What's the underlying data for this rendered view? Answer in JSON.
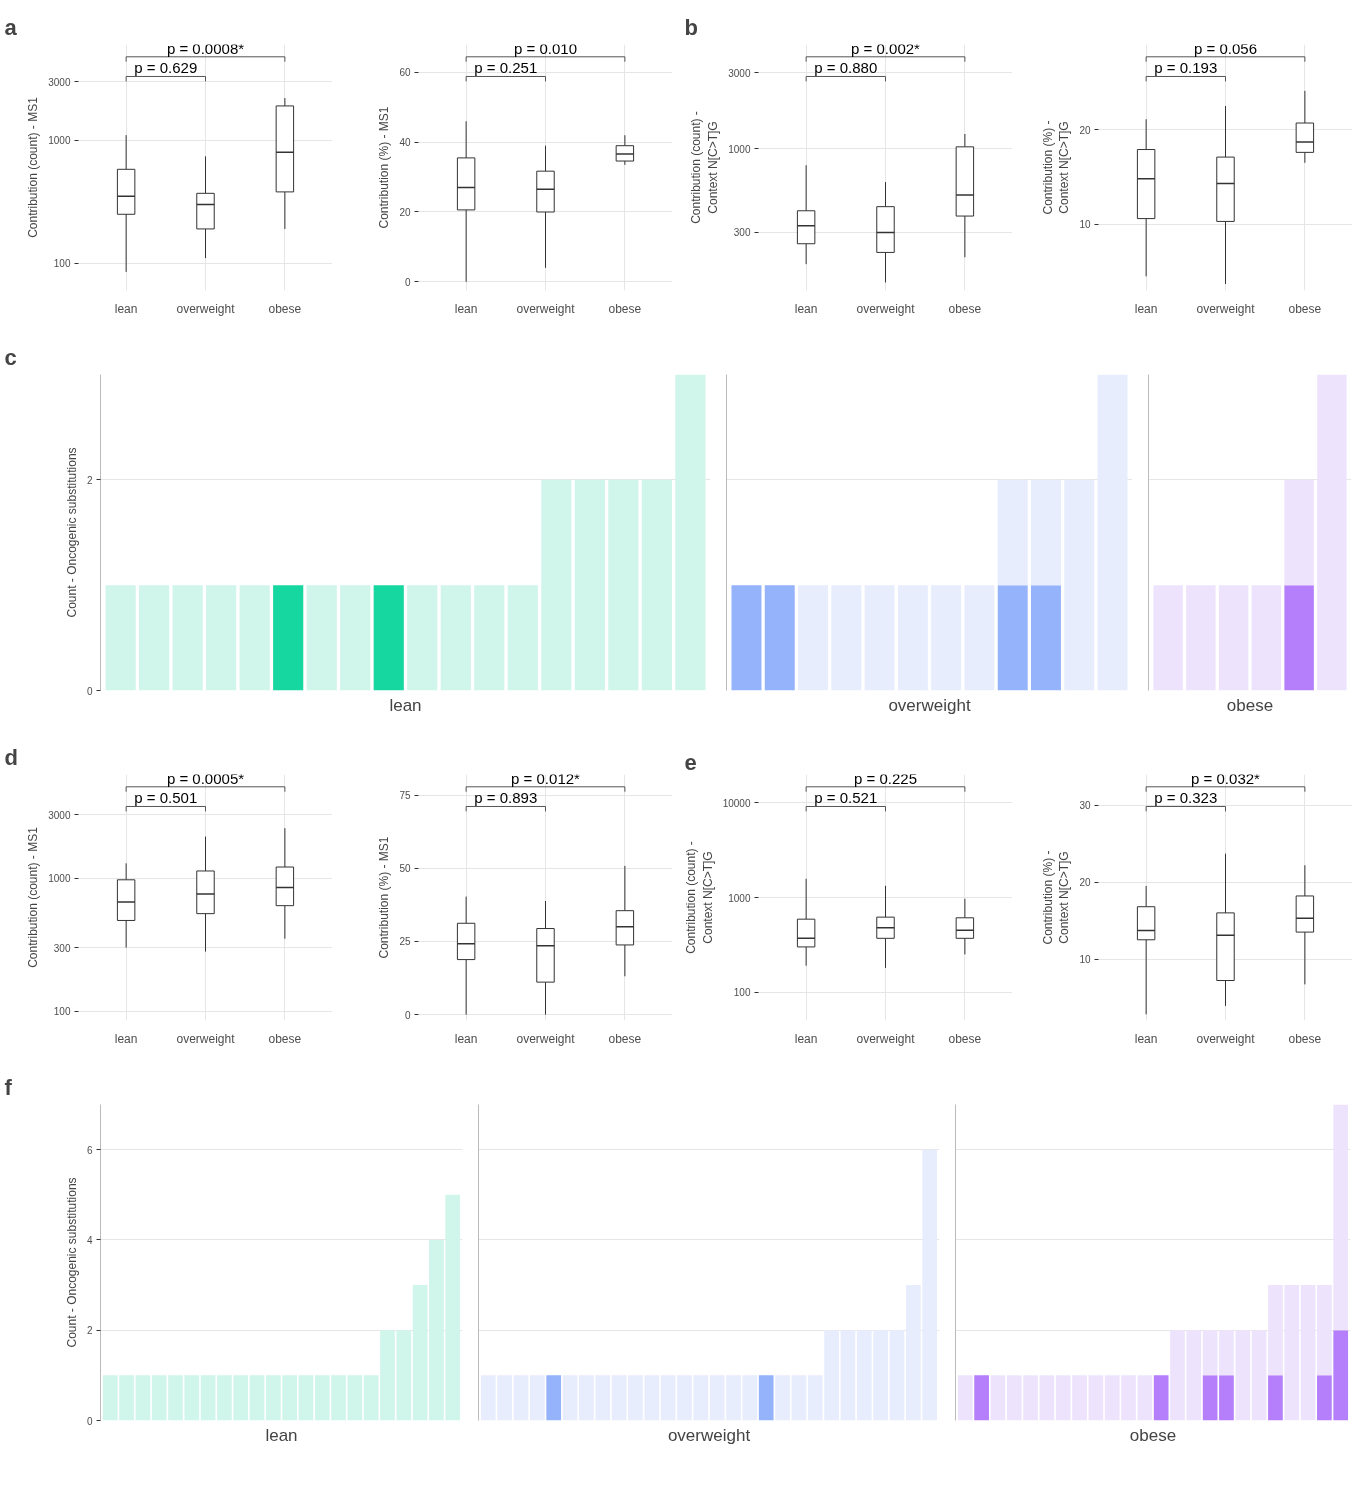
{
  "chart_data": [
    {
      "type": "box",
      "title": "a",
      "ylabel": "Contribution (count) - MS1",
      "categories": [
        "lean",
        "overweight",
        "obese"
      ],
      "log": true,
      "ylim": [
        60,
        6000
      ],
      "yticks": [
        100,
        1000,
        3000
      ],
      "grid": true,
      "annotations": [
        "p = 0.0008*",
        "p = 0.629"
      ],
      "boxes": [
        {
          "low": 85,
          "q1": 250,
          "median": 350,
          "q3": 580,
          "high": 1100
        },
        {
          "low": 110,
          "q1": 190,
          "median": 300,
          "q3": 370,
          "high": 740
        },
        {
          "low": 190,
          "q1": 380,
          "median": 800,
          "q3": 1900,
          "high": 2200
        }
      ]
    },
    {
      "type": "box",
      "ylabel": "Contribution (%) - MS1",
      "categories": [
        "lean",
        "overweight",
        "obese"
      ],
      "ylim": [
        -2.5,
        68
      ],
      "yticks": [
        0,
        20,
        40,
        60
      ],
      "grid": true,
      "annotations": [
        "p = 0.010",
        "p = 0.251"
      ],
      "boxes": [
        {
          "low": 0,
          "q1": 20.6,
          "median": 27,
          "q3": 35.5,
          "high": 46
        },
        {
          "low": 4,
          "q1": 20,
          "median": 26.5,
          "q3": 31.7,
          "high": 39
        },
        {
          "low": 33.5,
          "q1": 34.6,
          "median": 36.6,
          "q3": 39,
          "high": 42
        }
      ]
    },
    {
      "type": "box",
      "title": "b",
      "ylabel": "Contribution (count) -\nContext N[C>T]G",
      "categories": [
        "lean",
        "overweight",
        "obese"
      ],
      "log": true,
      "ylim": [
        130,
        4500
      ],
      "yticks": [
        300,
        1000,
        3000
      ],
      "grid": true,
      "annotations": [
        "p = 0.002*",
        "p = 0.880"
      ],
      "boxes": [
        {
          "low": 190,
          "q1": 255,
          "median": 330,
          "q3": 410,
          "high": 790
        },
        {
          "low": 146,
          "q1": 225,
          "median": 300,
          "q3": 435,
          "high": 620
        },
        {
          "low": 210,
          "q1": 380,
          "median": 515,
          "q3": 1030,
          "high": 1240
        }
      ]
    },
    {
      "type": "box",
      "ylabel": "Contribution (%) -\nContext N[C>T]G",
      "categories": [
        "lean",
        "overweight",
        "obese"
      ],
      "ylim": [
        3,
        29
      ],
      "yticks": [
        10,
        20
      ],
      "grid": true,
      "annotations": [
        "p = 0.056",
        "p = 0.193"
      ],
      "boxes": [
        {
          "low": 4.5,
          "q1": 10.6,
          "median": 14.8,
          "q3": 17.9,
          "high": 21.1
        },
        {
          "low": 3.7,
          "q1": 10.3,
          "median": 14.3,
          "q3": 17.1,
          "high": 22.5
        },
        {
          "low": 16.5,
          "q1": 17.6,
          "median": 18.7,
          "q3": 20.7,
          "high": 24.1
        }
      ]
    },
    {
      "type": "bar",
      "title": "c",
      "ylabel": "Count - Oncogenic substitutions",
      "xlabel": "lean",
      "stacked": true,
      "ylim": [
        0,
        3
      ],
      "yticks": [
        0,
        2
      ],
      "grid": "y",
      "tick_labels": "y",
      "categories": [
        null,
        null,
        null,
        null,
        null,
        null,
        null,
        null,
        null,
        null,
        null,
        null,
        null,
        null,
        null,
        null,
        null,
        null
      ],
      "series": [
        {
          "color": "#17d7a0",
          "values": [
            null,
            null,
            null,
            null,
            null,
            1,
            null,
            null,
            1,
            null,
            null,
            null,
            null,
            null,
            null,
            null,
            null,
            null
          ]
        },
        {
          "color": "#d0f5ea",
          "values": [
            1,
            1,
            1,
            1,
            1,
            null,
            1,
            1,
            null,
            1,
            1,
            1,
            1,
            2,
            2,
            2,
            2,
            3
          ]
        }
      ]
    },
    {
      "type": "bar",
      "xlabel": "overweight",
      "stacked": true,
      "ylim": [
        0,
        3
      ],
      "yticks": [
        0,
        2
      ],
      "grid": "y",
      "tick_labels": false,
      "categories": [
        null,
        null,
        null,
        null,
        null,
        null,
        null,
        null,
        null,
        null,
        null,
        null
      ],
      "series": [
        {
          "color": "#94b3fb",
          "values": [
            1,
            1,
            null,
            null,
            null,
            null,
            null,
            null,
            1,
            1,
            null,
            null
          ]
        },
        {
          "color": "#e8edfd",
          "values": [
            null,
            null,
            1,
            1,
            1,
            1,
            1,
            1,
            1,
            1,
            2,
            3
          ]
        }
      ]
    },
    {
      "type": "bar",
      "xlabel": "obese",
      "stacked": true,
      "ylim": [
        0,
        3
      ],
      "yticks": [
        0,
        2
      ],
      "grid": "y",
      "tick_labels": false,
      "categories": [
        null,
        null,
        null,
        null,
        null,
        null
      ],
      "series": [
        {
          "color": "#b57efa",
          "values": [
            null,
            null,
            null,
            null,
            1,
            null
          ]
        },
        {
          "color": "#eee3fd",
          "values": [
            1,
            1,
            1,
            1,
            1,
            3
          ]
        }
      ]
    },
    {
      "type": "box",
      "title": "d",
      "ylabel": "Contribution (count) - MS1",
      "categories": [
        "lean",
        "overweight",
        "obese"
      ],
      "log": true,
      "ylim": [
        85,
        6000
      ],
      "yticks": [
        100,
        300,
        1000,
        3000
      ],
      "grid": true,
      "annotations": [
        "p = 0.0005*",
        "p = 0.501"
      ],
      "boxes": [
        {
          "low": 300,
          "q1": 480,
          "median": 660,
          "q3": 970,
          "high": 1290
        },
        {
          "low": 280,
          "q1": 540,
          "median": 760,
          "q3": 1130,
          "high": 2050
        },
        {
          "low": 350,
          "q1": 620,
          "median": 850,
          "q3": 1210,
          "high": 2370
        }
      ]
    },
    {
      "type": "box",
      "ylabel": "Contribution (%) - MS1",
      "categories": [
        "lean",
        "overweight",
        "obese"
      ],
      "ylim": [
        -2,
        82
      ],
      "yticks": [
        0,
        25,
        50,
        75
      ],
      "grid": true,
      "annotations": [
        "p = 0.012*",
        "p = 0.893"
      ],
      "boxes": [
        {
          "low": 0,
          "q1": 18.8,
          "median": 24.2,
          "q3": 31.2,
          "high": 40.3
        },
        {
          "low": 0,
          "q1": 11.1,
          "median": 23.5,
          "q3": 29.4,
          "high": 38.8
        },
        {
          "low": 13.1,
          "q1": 23.8,
          "median": 30,
          "q3": 35.5,
          "high": 50.8
        }
      ]
    },
    {
      "type": "box",
      "title": "e",
      "ylabel": "Contribution (count) -\nContext N[C>T]G",
      "categories": [
        "lean",
        "overweight",
        "obese"
      ],
      "log": true,
      "ylim": [
        50,
        20000
      ],
      "yticks": [
        100,
        1000,
        10000
      ],
      "grid": true,
      "annotations": [
        "p = 0.225",
        "p = 0.521"
      ],
      "boxes": [
        {
          "low": 190,
          "q1": 300,
          "median": 370,
          "q3": 590,
          "high": 1580
        },
        {
          "low": 180,
          "q1": 370,
          "median": 480,
          "q3": 620,
          "high": 1330
        },
        {
          "low": 250,
          "q1": 370,
          "median": 450,
          "q3": 610,
          "high": 970
        }
      ]
    },
    {
      "type": "box",
      "ylabel": "Contribution (%) -\nContext N[C>T]G",
      "categories": [
        "lean",
        "overweight",
        "obese"
      ],
      "ylim": [
        2,
        34
      ],
      "yticks": [
        10,
        20,
        30
      ],
      "grid": true,
      "annotations": [
        "p = 0.032*",
        "p = 0.323"
      ],
      "boxes": [
        {
          "low": 2.8,
          "q1": 12.5,
          "median": 13.7,
          "q3": 16.8,
          "high": 19.5
        },
        {
          "low": 3.9,
          "q1": 7.2,
          "median": 13.1,
          "q3": 16,
          "high": 23.7
        },
        {
          "low": 6.7,
          "q1": 13.5,
          "median": 15.3,
          "q3": 18.2,
          "high": 22.2
        }
      ]
    },
    {
      "type": "bar",
      "title": "f",
      "ylabel": "Count - Oncogenic substitutions",
      "xlabel": "lean",
      "stacked": true,
      "ylim": [
        0,
        7
      ],
      "yticks": [
        0,
        2,
        4,
        6
      ],
      "grid": "y",
      "tick_labels": "y",
      "categories": [
        null,
        null,
        null,
        null,
        null,
        null,
        null,
        null,
        null,
        null,
        null,
        null,
        null,
        null,
        null,
        null,
        null,
        null,
        null,
        null,
        null,
        null
      ],
      "series": [
        {
          "color": "#d0f5ea",
          "values": [
            1,
            1,
            1,
            1,
            1,
            1,
            1,
            1,
            1,
            1,
            1,
            1,
            1,
            1,
            1,
            1,
            1,
            2,
            2,
            3,
            4,
            5
          ]
        }
      ]
    },
    {
      "type": "bar",
      "xlabel": "overweight",
      "stacked": true,
      "ylim": [
        0,
        7
      ],
      "yticks": [
        0,
        2,
        4,
        6
      ],
      "grid": "y",
      "tick_labels": false,
      "categories": [
        null,
        null,
        null,
        null,
        null,
        null,
        null,
        null,
        null,
        null,
        null,
        null,
        null,
        null,
        null,
        null,
        null,
        null,
        null,
        null,
        null,
        null,
        null,
        null,
        null,
        null,
        null,
        null
      ],
      "series": [
        {
          "color": "#94b3fb",
          "values": [
            null,
            null,
            null,
            null,
            1,
            null,
            null,
            null,
            null,
            null,
            null,
            null,
            null,
            null,
            null,
            null,
            null,
            1,
            null,
            null,
            null,
            null,
            null,
            null,
            null,
            null,
            null,
            null
          ]
        },
        {
          "color": "#e8edfd",
          "values": [
            1,
            1,
            1,
            1,
            null,
            1,
            1,
            1,
            1,
            1,
            1,
            1,
            1,
            1,
            1,
            1,
            1,
            null,
            1,
            1,
            1,
            2,
            2,
            2,
            2,
            2,
            3,
            6
          ]
        }
      ]
    },
    {
      "type": "bar",
      "xlabel": "obese",
      "stacked": true,
      "ylim": [
        0,
        7
      ],
      "yticks": [
        0,
        2,
        4,
        6
      ],
      "grid": "y",
      "tick_labels": false,
      "categories": [
        null,
        null,
        null,
        null,
        null,
        null,
        null,
        null,
        null,
        null,
        null,
        null,
        null,
        null,
        null,
        null,
        null,
        null,
        null,
        null,
        null,
        null,
        null,
        null
      ],
      "series": [
        {
          "color": "#b57efa",
          "values": [
            null,
            1,
            null,
            null,
            null,
            null,
            null,
            null,
            null,
            null,
            null,
            null,
            1,
            null,
            null,
            1,
            1,
            null,
            null,
            1,
            null,
            null,
            1,
            2
          ]
        },
        {
          "color": "#eee3fd",
          "values": [
            1,
            null,
            1,
            1,
            1,
            1,
            1,
            1,
            1,
            1,
            1,
            1,
            null,
            2,
            2,
            1,
            1,
            2,
            2,
            2,
            3,
            3,
            2,
            5
          ]
        }
      ]
    }
  ]
}
